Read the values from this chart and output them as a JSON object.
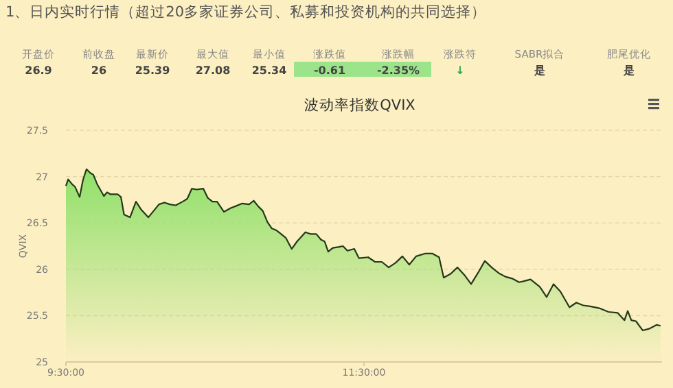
{
  "chart_data": [
    {
      "type": "other",
      "title": "1、日内实时行情（超过20多家证券公司、私募和投资机构的共同选择）",
      "annotations": [
        "开盘价",
        "前收盘",
        "最新价",
        "最大值",
        "最小值",
        "涨跌值",
        "涨跌幅",
        "涨跌符",
        "SABR拟合",
        "肥尾优化",
        "26.9",
        "26",
        "25.39",
        "27.08",
        "25.34",
        "-0.61",
        "-2.35%",
        "↓",
        "是",
        "是"
      ]
    },
    {
      "type": "area",
      "title": "波动率指数QVIX",
      "ylabel": "QVIX",
      "x": [
        9.5,
        9.515,
        9.54,
        9.561,
        9.592,
        9.614,
        9.638,
        9.663,
        9.684,
        9.709,
        9.755,
        9.776,
        9.798,
        9.847,
        9.869,
        9.89,
        9.93,
        9.97,
        10.007,
        10.053,
        10.099,
        10.124,
        10.161,
        10.197,
        10.237,
        10.283,
        10.314,
        10.345,
        10.376,
        10.422,
        10.452,
        10.483,
        10.514,
        10.56,
        10.606,
        10.637,
        10.683,
        10.729,
        10.76,
        10.79,
        10.821,
        10.852,
        10.882,
        10.913,
        10.944,
        10.975,
        11.015,
        11.051,
        11.107,
        11.144,
        11.18,
        11.211,
        11.236,
        11.26,
        11.291,
        11.328,
        11.359,
        11.389,
        11.435,
        11.466,
        11.528,
        11.574,
        11.62,
        11.666,
        11.712,
        11.758,
        11.804,
        11.85,
        11.912,
        11.958,
        12.004,
        12.035,
        12.081,
        12.127,
        12.173,
        12.219,
        12.265,
        12.311,
        12.357,
        12.403,
        12.449,
        12.495,
        12.541,
        12.618,
        12.68,
        12.726,
        12.772,
        12.818,
        12.879,
        12.925,
        12.972,
        13.018,
        13.079,
        13.141,
        13.202,
        13.248,
        13.27,
        13.294,
        13.325,
        13.371,
        13.417,
        13.463,
        13.49
      ],
      "series": [
        {
          "color": "#90e06a",
          "values": [
            26.9,
            26.97,
            26.92,
            26.89,
            26.78,
            26.96,
            27.08,
            27.04,
            27.02,
            26.92,
            26.79,
            26.83,
            26.81,
            26.81,
            26.78,
            26.59,
            26.56,
            26.73,
            26.64,
            26.56,
            26.65,
            26.7,
            26.72,
            26.7,
            26.69,
            26.73,
            26.76,
            26.87,
            26.86,
            26.87,
            26.77,
            26.73,
            26.73,
            26.62,
            26.66,
            26.68,
            26.71,
            26.7,
            26.74,
            26.68,
            26.63,
            26.51,
            26.44,
            26.42,
            26.38,
            26.34,
            26.22,
            26.3,
            26.4,
            26.38,
            26.38,
            26.32,
            26.3,
            26.19,
            26.23,
            26.24,
            26.25,
            26.2,
            26.22,
            26.12,
            26.13,
            26.08,
            26.08,
            26.02,
            26.07,
            26.14,
            26.05,
            26.14,
            26.17,
            26.17,
            26.13,
            25.91,
            25.95,
            26.02,
            25.94,
            25.84,
            25.96,
            26.09,
            26.02,
            25.96,
            25.92,
            25.9,
            25.86,
            25.89,
            25.81,
            25.7,
            25.84,
            25.76,
            25.59,
            25.64,
            25.61,
            25.6,
            25.58,
            25.54,
            25.53,
            25.45,
            25.55,
            25.45,
            25.44,
            25.34,
            25.36,
            25.4,
            25.39
          ]
        }
      ],
      "xlim": [
        9.5,
        13.5
      ],
      "xticks": [
        {
          "value": 9.5,
          "label": "9:30:00"
        },
        {
          "value": 11.5,
          "label": "11:30:00"
        }
      ],
      "ylim": [
        25,
        27.5
      ],
      "yticks": [
        25,
        25.5,
        26,
        26.5,
        27,
        27.5
      ],
      "grid": "y"
    }
  ]
}
